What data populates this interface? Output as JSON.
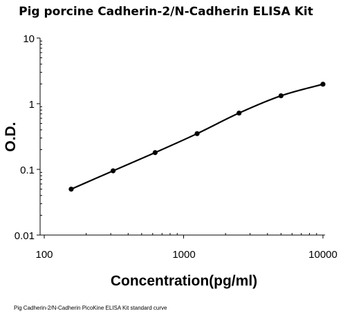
{
  "chart_data": {
    "type": "line",
    "title": "Pig porcine Cadherin-2/N-Cadherin  ELISA Kit",
    "xlabel": "Concentration(pg/ml)",
    "ylabel": "O.D.",
    "caption": "Pig Cadherin-2/N-Cadherin PicoKine ELISA Kit standard curve",
    "x_scale": "log",
    "y_scale": "log",
    "xlim": [
      100,
      10000
    ],
    "ylim": [
      0.01,
      10
    ],
    "x_ticks": [
      100,
      1000,
      10000
    ],
    "x_tick_labels": [
      "100",
      "1000",
      "10000"
    ],
    "y_ticks": [
      0.01,
      0.1,
      1,
      10
    ],
    "y_tick_labels": [
      "0.01",
      "0.1",
      "1",
      "10"
    ],
    "grid": false,
    "legend": "none",
    "series": [
      {
        "color": "#000000",
        "x": [
          156,
          312,
          625,
          1250,
          2500,
          5000,
          10000
        ],
        "y": [
          0.05,
          0.095,
          0.18,
          0.35,
          0.72,
          1.32,
          1.98
        ]
      }
    ]
  }
}
